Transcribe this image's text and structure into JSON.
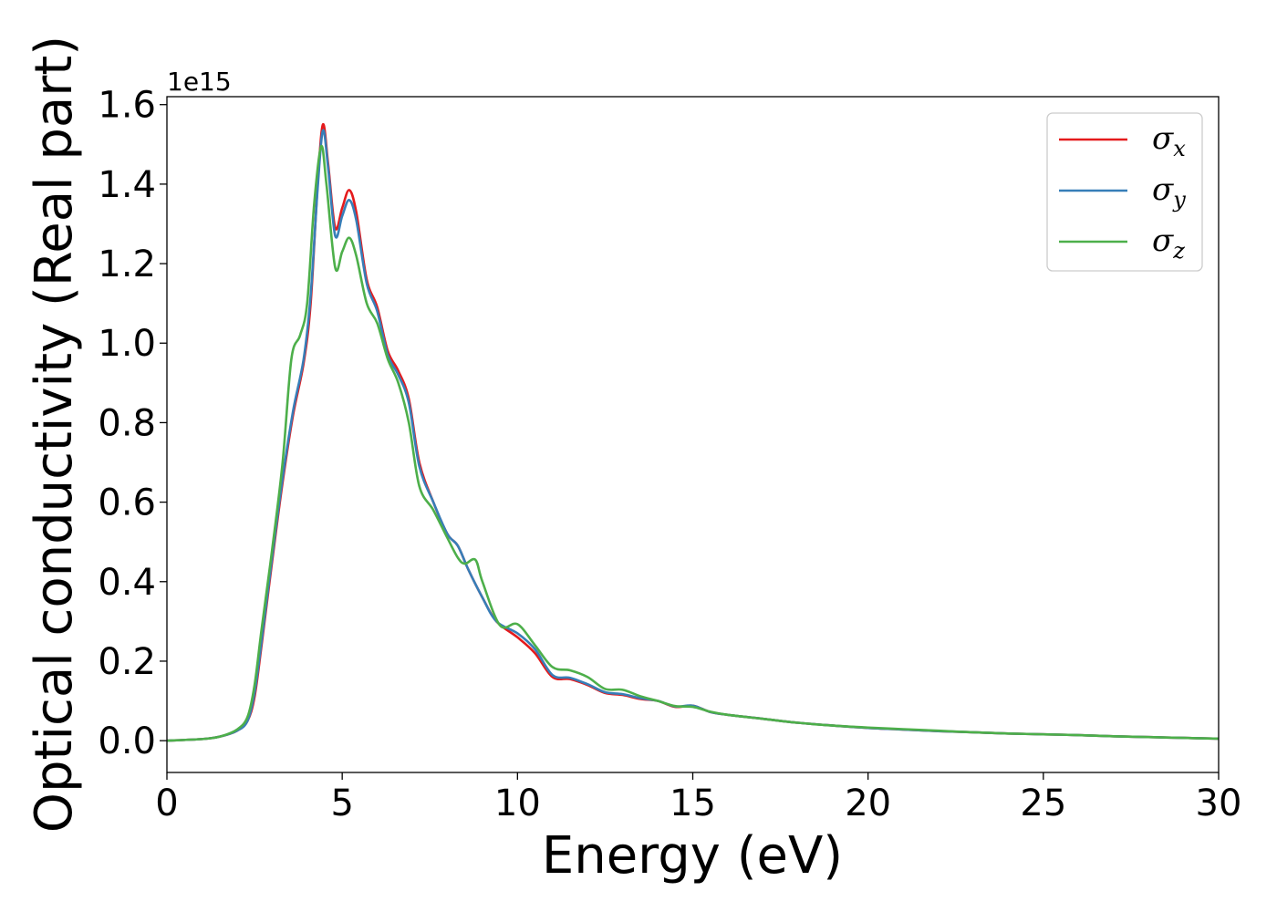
{
  "chart_data": {
    "type": "line",
    "xlabel": "Energy (eV)",
    "ylabel": "Optical conductivity (Real part)",
    "y_offset_label": "1e15",
    "xlim": [
      0,
      30
    ],
    "ylim": [
      -0.08,
      1.62
    ],
    "x_ticks": [
      0,
      5,
      10,
      15,
      20,
      25,
      30
    ],
    "y_ticks": [
      0.0,
      0.2,
      0.4,
      0.6,
      0.8,
      1.0,
      1.2,
      1.4,
      1.6
    ],
    "y_tick_labels": [
      "0.0",
      "0.2",
      "0.4",
      "0.6",
      "0.8",
      "1.0",
      "1.2",
      "1.4",
      "1.6"
    ],
    "grid": false,
    "legend_position": "top-right",
    "series": [
      {
        "name": "σx",
        "label_main": "σ",
        "label_sub": "x",
        "color": "#e41a1c",
        "points": [
          [
            0,
            0
          ],
          [
            1,
            0.004
          ],
          [
            1.5,
            0.01
          ],
          [
            2,
            0.025
          ],
          [
            2.3,
            0.05
          ],
          [
            2.5,
            0.11
          ],
          [
            2.7,
            0.24
          ],
          [
            3.0,
            0.45
          ],
          [
            3.3,
            0.65
          ],
          [
            3.6,
            0.82
          ],
          [
            3.9,
            0.95
          ],
          [
            4.1,
            1.1
          ],
          [
            4.3,
            1.4
          ],
          [
            4.45,
            1.55
          ],
          [
            4.6,
            1.45
          ],
          [
            4.8,
            1.29
          ],
          [
            5.0,
            1.34
          ],
          [
            5.2,
            1.385
          ],
          [
            5.4,
            1.33
          ],
          [
            5.7,
            1.16
          ],
          [
            6.0,
            1.09
          ],
          [
            6.3,
            0.98
          ],
          [
            6.6,
            0.93
          ],
          [
            6.9,
            0.86
          ],
          [
            7.2,
            0.7
          ],
          [
            7.6,
            0.6
          ],
          [
            8.0,
            0.52
          ],
          [
            8.3,
            0.49
          ],
          [
            8.6,
            0.43
          ],
          [
            9.0,
            0.36
          ],
          [
            9.4,
            0.3
          ],
          [
            10.0,
            0.26
          ],
          [
            10.5,
            0.22
          ],
          [
            11.0,
            0.16
          ],
          [
            11.5,
            0.155
          ],
          [
            12.0,
            0.14
          ],
          [
            12.5,
            0.12
          ],
          [
            13.0,
            0.115
          ],
          [
            13.5,
            0.105
          ],
          [
            14.0,
            0.1
          ],
          [
            14.5,
            0.085
          ],
          [
            15.0,
            0.088
          ],
          [
            15.5,
            0.072
          ],
          [
            16,
            0.065
          ],
          [
            17,
            0.055
          ],
          [
            18,
            0.045
          ],
          [
            19,
            0.038
          ],
          [
            20,
            0.032
          ],
          [
            21,
            0.028
          ],
          [
            22,
            0.024
          ],
          [
            23,
            0.021
          ],
          [
            24,
            0.018
          ],
          [
            25,
            0.016
          ],
          [
            26,
            0.014
          ],
          [
            27,
            0.011
          ],
          [
            28,
            0.009
          ],
          [
            29,
            0.007
          ],
          [
            30,
            0.005
          ]
        ]
      },
      {
        "name": "σy",
        "label_main": "σ",
        "label_sub": "y",
        "color": "#377eb8",
        "points": [
          [
            0,
            0
          ],
          [
            1,
            0.004
          ],
          [
            1.5,
            0.01
          ],
          [
            2,
            0.025
          ],
          [
            2.3,
            0.05
          ],
          [
            2.5,
            0.12
          ],
          [
            2.7,
            0.25
          ],
          [
            3.0,
            0.46
          ],
          [
            3.3,
            0.66
          ],
          [
            3.6,
            0.83
          ],
          [
            3.9,
            0.96
          ],
          [
            4.1,
            1.12
          ],
          [
            4.3,
            1.39
          ],
          [
            4.45,
            1.535
          ],
          [
            4.6,
            1.44
          ],
          [
            4.8,
            1.27
          ],
          [
            5.0,
            1.32
          ],
          [
            5.2,
            1.36
          ],
          [
            5.4,
            1.31
          ],
          [
            5.7,
            1.15
          ],
          [
            6.0,
            1.08
          ],
          [
            6.3,
            0.97
          ],
          [
            6.6,
            0.92
          ],
          [
            6.9,
            0.85
          ],
          [
            7.2,
            0.69
          ],
          [
            7.6,
            0.6
          ],
          [
            8.0,
            0.52
          ],
          [
            8.3,
            0.49
          ],
          [
            8.6,
            0.43
          ],
          [
            9.0,
            0.36
          ],
          [
            9.4,
            0.3
          ],
          [
            10.0,
            0.27
          ],
          [
            10.5,
            0.23
          ],
          [
            11.0,
            0.165
          ],
          [
            11.5,
            0.158
          ],
          [
            12.0,
            0.142
          ],
          [
            12.5,
            0.122
          ],
          [
            13.0,
            0.117
          ],
          [
            13.5,
            0.107
          ],
          [
            14.0,
            0.1
          ],
          [
            14.5,
            0.086
          ],
          [
            15.0,
            0.088
          ],
          [
            15.5,
            0.072
          ],
          [
            16,
            0.065
          ],
          [
            17,
            0.055
          ],
          [
            18,
            0.045
          ],
          [
            19,
            0.038
          ],
          [
            20,
            0.032
          ],
          [
            21,
            0.028
          ],
          [
            22,
            0.024
          ],
          [
            23,
            0.021
          ],
          [
            24,
            0.018
          ],
          [
            25,
            0.016
          ],
          [
            26,
            0.014
          ],
          [
            27,
            0.011
          ],
          [
            28,
            0.009
          ],
          [
            29,
            0.007
          ],
          [
            30,
            0.005
          ]
        ]
      },
      {
        "name": "σz",
        "label_main": "σ",
        "label_sub": "z",
        "color": "#4daf4a",
        "points": [
          [
            0,
            0
          ],
          [
            1,
            0.004
          ],
          [
            1.5,
            0.01
          ],
          [
            2,
            0.028
          ],
          [
            2.3,
            0.06
          ],
          [
            2.5,
            0.14
          ],
          [
            2.7,
            0.28
          ],
          [
            3.0,
            0.48
          ],
          [
            3.3,
            0.7
          ],
          [
            3.55,
            0.96
          ],
          [
            3.8,
            1.02
          ],
          [
            4.0,
            1.1
          ],
          [
            4.2,
            1.35
          ],
          [
            4.4,
            1.495
          ],
          [
            4.55,
            1.4
          ],
          [
            4.8,
            1.19
          ],
          [
            5.0,
            1.23
          ],
          [
            5.2,
            1.265
          ],
          [
            5.4,
            1.22
          ],
          [
            5.7,
            1.1
          ],
          [
            6.0,
            1.05
          ],
          [
            6.3,
            0.96
          ],
          [
            6.6,
            0.9
          ],
          [
            6.9,
            0.8
          ],
          [
            7.2,
            0.64
          ],
          [
            7.6,
            0.58
          ],
          [
            8.0,
            0.51
          ],
          [
            8.3,
            0.46
          ],
          [
            8.5,
            0.445
          ],
          [
            8.8,
            0.455
          ],
          [
            9.0,
            0.4
          ],
          [
            9.5,
            0.29
          ],
          [
            10.0,
            0.293
          ],
          [
            10.5,
            0.24
          ],
          [
            11.0,
            0.185
          ],
          [
            11.5,
            0.177
          ],
          [
            12.0,
            0.16
          ],
          [
            12.5,
            0.13
          ],
          [
            13.0,
            0.128
          ],
          [
            13.5,
            0.112
          ],
          [
            14.0,
            0.1
          ],
          [
            14.5,
            0.087
          ],
          [
            15.0,
            0.085
          ],
          [
            15.5,
            0.073
          ],
          [
            16,
            0.065
          ],
          [
            17,
            0.055
          ],
          [
            18,
            0.045
          ],
          [
            19,
            0.038
          ],
          [
            20,
            0.033
          ],
          [
            21,
            0.029
          ],
          [
            22,
            0.025
          ],
          [
            23,
            0.021
          ],
          [
            24,
            0.018
          ],
          [
            25,
            0.016
          ],
          [
            26,
            0.014
          ],
          [
            27,
            0.011
          ],
          [
            28,
            0.009
          ],
          [
            29,
            0.007
          ],
          [
            30,
            0.005
          ]
        ]
      }
    ]
  }
}
